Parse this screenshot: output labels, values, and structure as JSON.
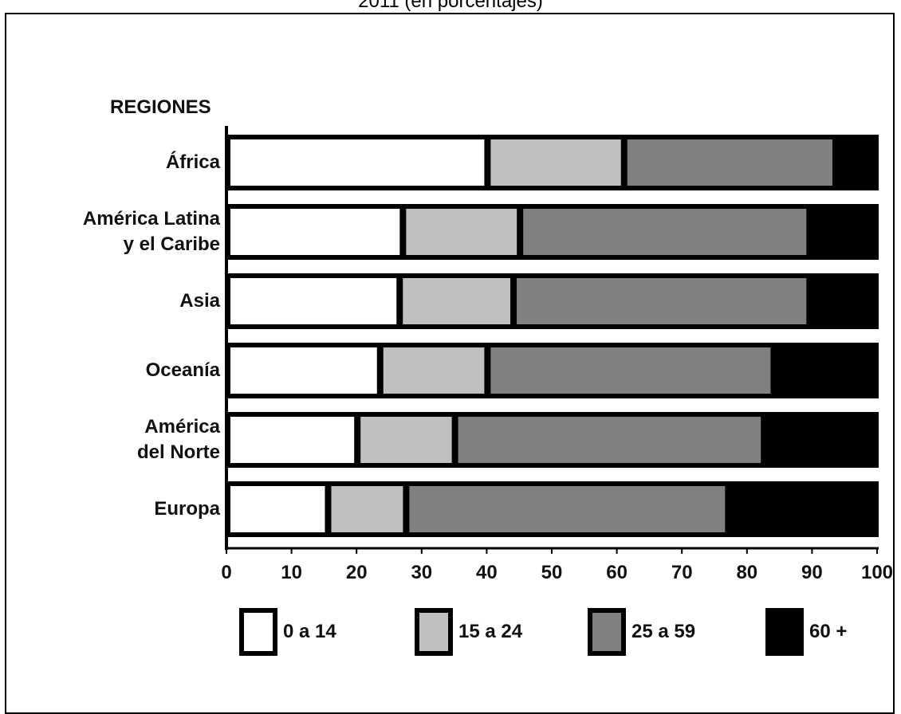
{
  "page": {
    "title": "2011 (en porcentajes)"
  },
  "chart_data": {
    "type": "bar",
    "orientation": "horizontal",
    "stacked": true,
    "y_header": "REGIONES",
    "categories": [
      [
        "África"
      ],
      [
        "América Latina",
        "y el Caribe"
      ],
      [
        "Asia"
      ],
      [
        "Oceanía"
      ],
      [
        "América",
        "del Norte"
      ],
      [
        "Europa"
      ]
    ],
    "series": [
      {
        "name": "0 a 14",
        "color": "#ffffff",
        "values": [
          40,
          27,
          26.5,
          23.5,
          20,
          15.5
        ]
      },
      {
        "name": "15 a 24",
        "color": "#c0c0c0",
        "values": [
          21,
          18,
          17.5,
          16.5,
          15,
          12
        ]
      },
      {
        "name": "25 a 59",
        "color": "#808080",
        "values": [
          32.5,
          44.5,
          45.5,
          44,
          47.5,
          49.5
        ]
      },
      {
        "name": "60 +",
        "color": "#000000",
        "values": [
          6.5,
          10.5,
          10.5,
          16,
          17.5,
          23
        ]
      }
    ],
    "xlim": [
      0,
      100
    ],
    "xticks": [
      "0",
      "10",
      "20",
      "30",
      "40",
      "50",
      "60",
      "70",
      "80",
      "90",
      "100"
    ],
    "grid": false,
    "legend_position": "bottom"
  }
}
